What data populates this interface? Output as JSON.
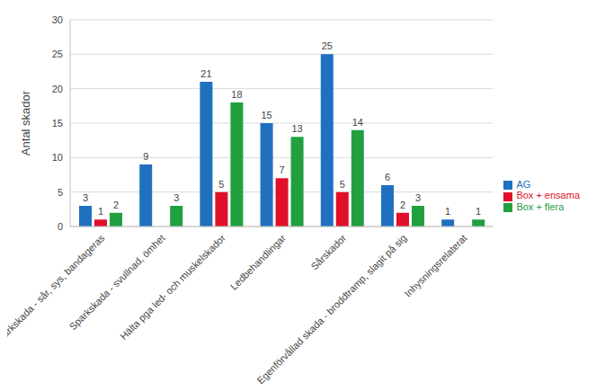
{
  "chart_data": {
    "type": "bar",
    "y_label": "Antal skador",
    "categories": [
      "Sparkskada - sår, sys, bandageras",
      "Sparkskada - svullnad, ömhet",
      "Hälta pga led- och muskelskador",
      "Ledbehandlingar",
      "Sårskador",
      "Egenförvållad skada - broddtramp, slagit på sig",
      "Inhysningsrelaterat"
    ],
    "series": [
      {
        "name": "AG",
        "color": "#2070c0",
        "values": [
          3,
          9,
          21,
          15,
          25,
          6,
          1
        ]
      },
      {
        "name": "Box + ensama",
        "color": "#e0102a",
        "values": [
          1,
          0,
          5,
          7,
          5,
          2,
          0
        ]
      },
      {
        "name": "Box + flera",
        "color": "#22a040",
        "values": [
          2,
          3,
          18,
          13,
          14,
          3,
          1
        ]
      }
    ],
    "ylim": [
      0,
      30
    ],
    "yticks": [
      0,
      5,
      10,
      15,
      20,
      25,
      30
    ],
    "grid": true,
    "legend": "right",
    "data_labels": true
  }
}
